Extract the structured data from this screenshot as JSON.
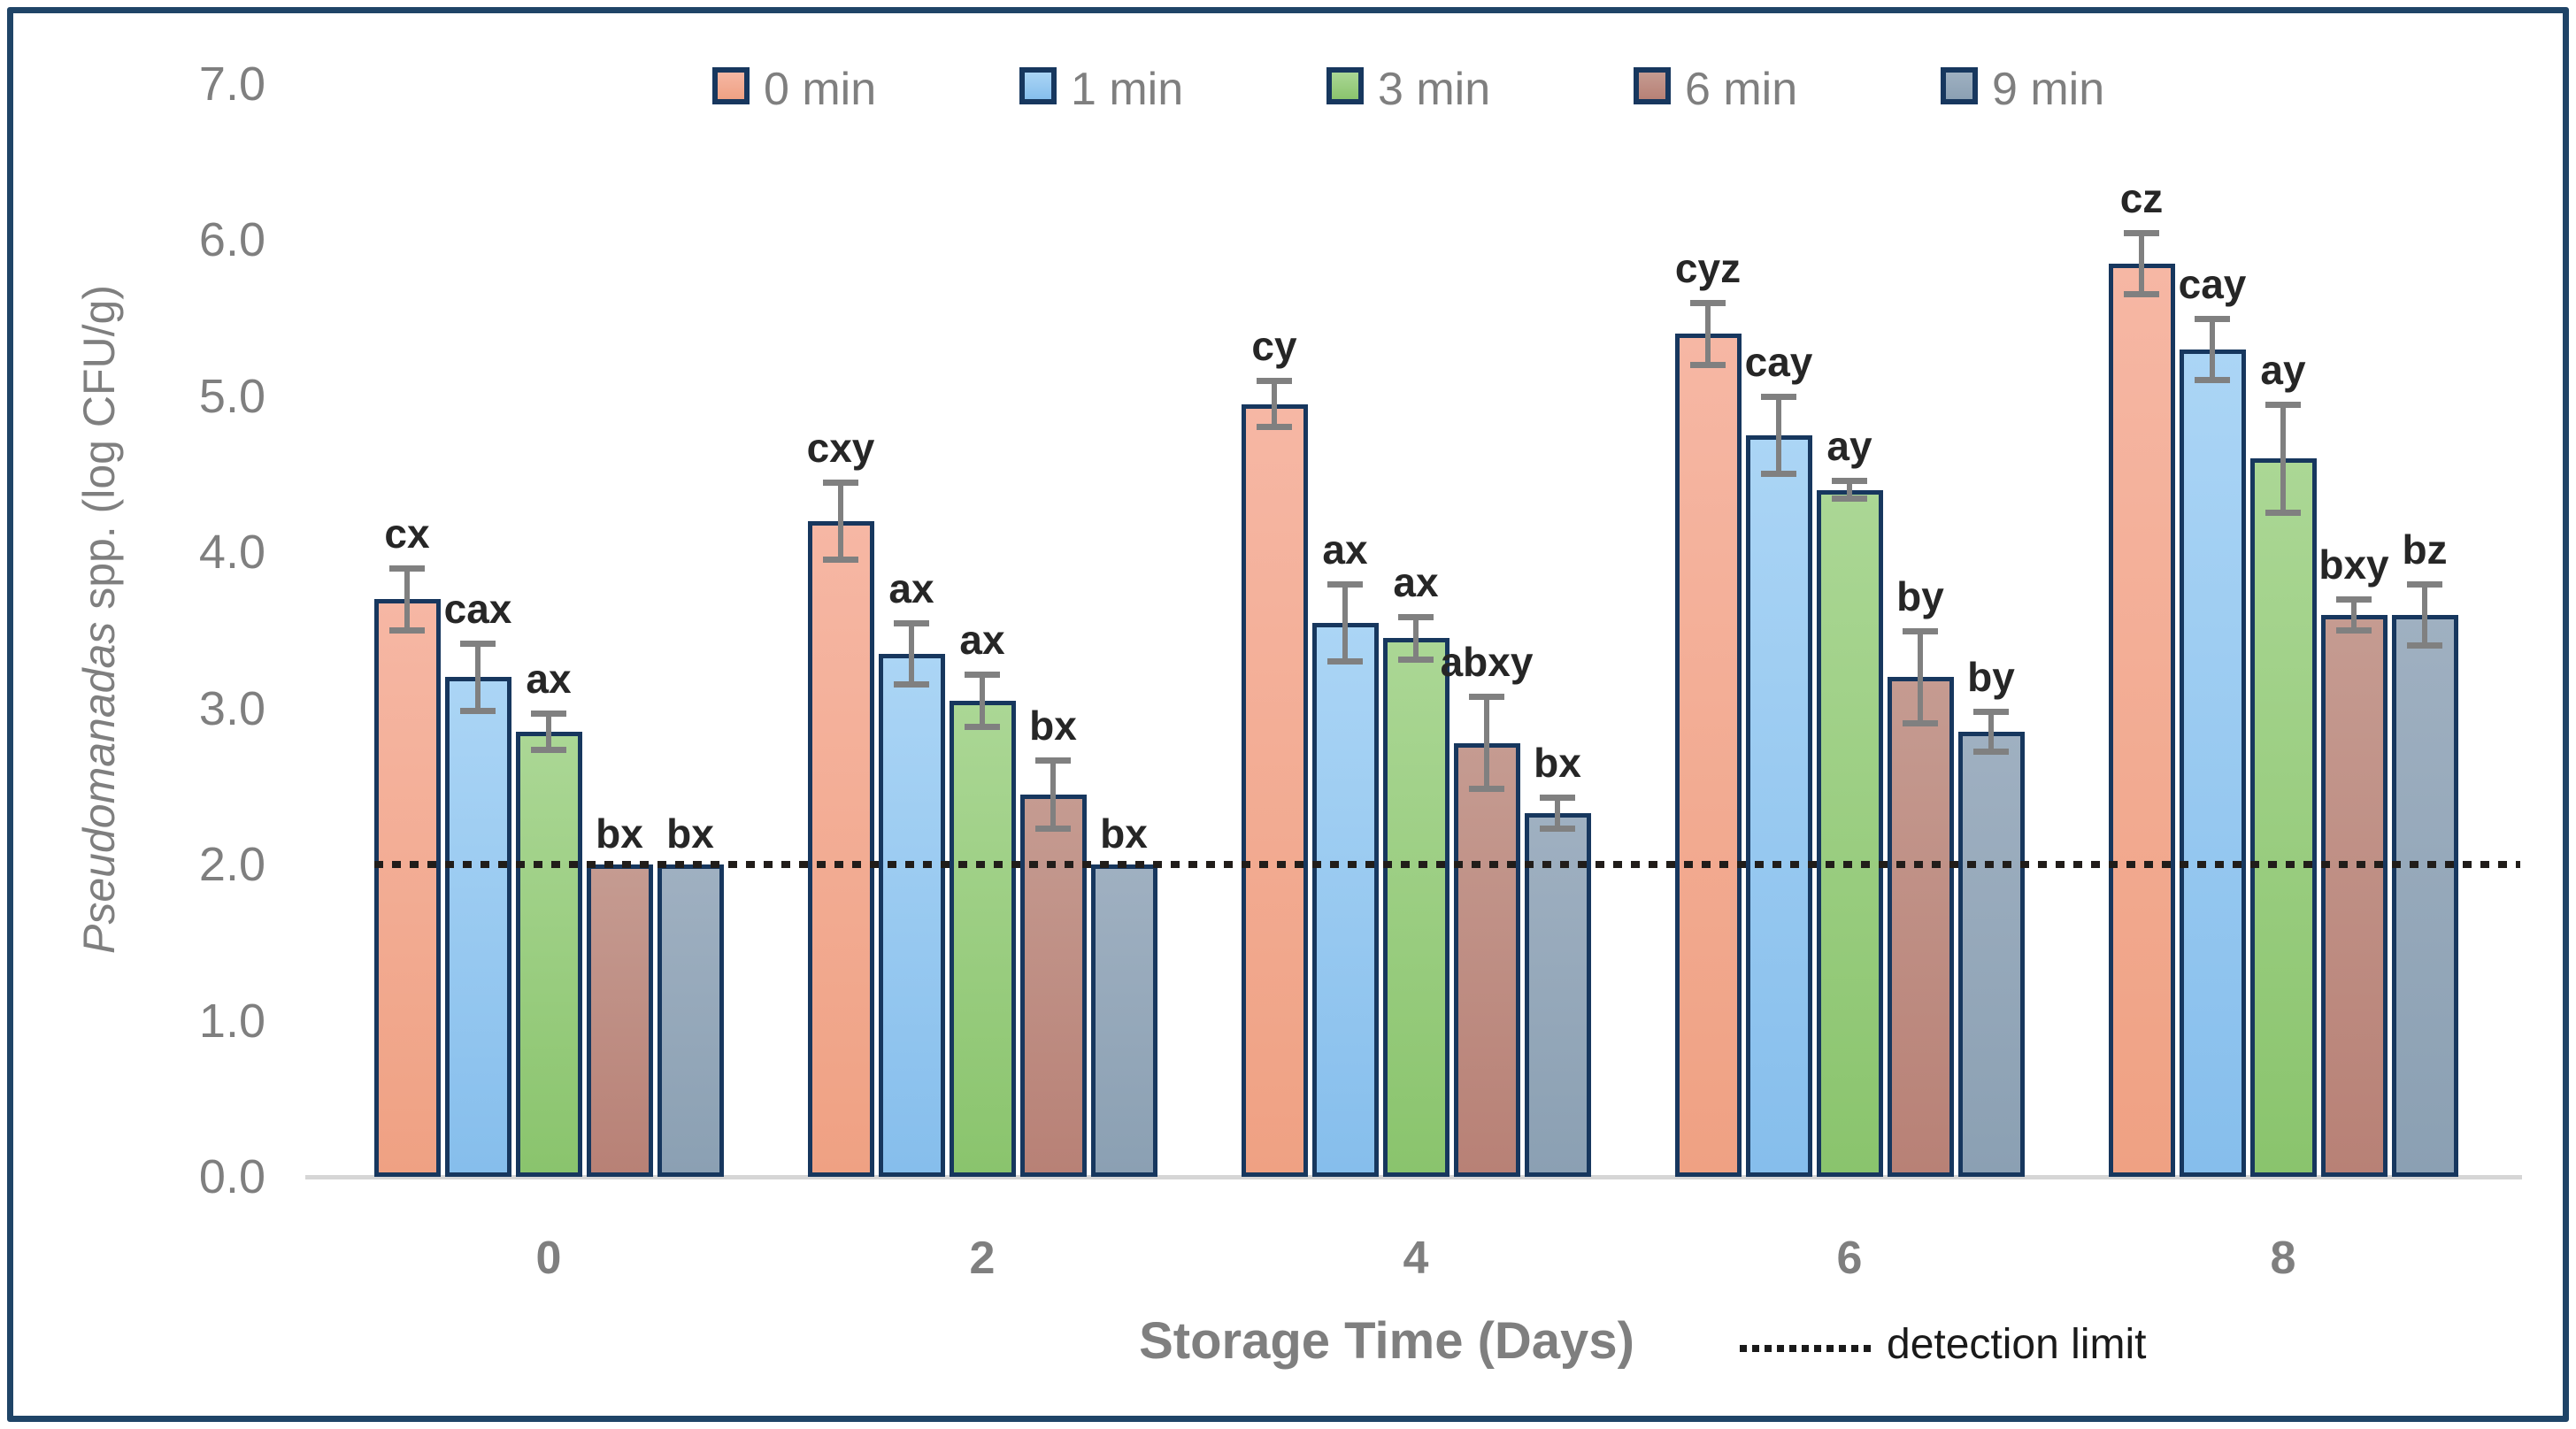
{
  "chart_data": {
    "type": "bar",
    "title": "",
    "xlabel": "Storage Time (Days)",
    "ylabel_italic": "Pseudomanadas",
    "ylabel_rest": " spp. (log CFU/g)",
    "ylim": [
      0,
      7
    ],
    "yticks": [
      "0.0",
      "1.0",
      "2.0",
      "3.0",
      "4.0",
      "5.0",
      "6.0",
      "7.0"
    ],
    "categories": [
      "0",
      "2",
      "4",
      "6",
      "8"
    ],
    "grid": "off",
    "legend_position": "top",
    "series": [
      {
        "name": "0 min",
        "color_top": "#F6B7A4",
        "color_bottom": "#EFA183",
        "values": [
          3.7,
          4.2,
          4.95,
          5.4,
          5.85
        ],
        "errors": [
          0.2,
          0.25,
          0.15,
          0.2,
          0.2
        ],
        "sig_labels": [
          "cx",
          "cxy",
          "cy",
          "cyz",
          "cz"
        ]
      },
      {
        "name": "1 min",
        "color_top": "#ABD5F5",
        "color_bottom": "#86BEEC",
        "values": [
          3.2,
          3.35,
          3.55,
          4.75,
          5.3
        ],
        "errors": [
          0.22,
          0.2,
          0.25,
          0.25,
          0.2
        ],
        "sig_labels": [
          "cax",
          "ax",
          "ax",
          "cay",
          "cay"
        ]
      },
      {
        "name": "3 min",
        "color_top": "#ABD795",
        "color_bottom": "#8AC46D",
        "values": [
          2.85,
          3.05,
          3.45,
          4.4,
          4.6
        ],
        "errors": [
          0.12,
          0.17,
          0.14,
          0.06,
          0.35
        ],
        "sig_labels": [
          "ax",
          "ax",
          "ax",
          "ay",
          "ay"
        ]
      },
      {
        "name": "6 min",
        "color_top": "#C59B91",
        "color_bottom": "#B88176",
        "values": [
          2.0,
          2.45,
          2.78,
          3.2,
          3.6
        ],
        "errors": [
          0,
          0.22,
          0.3,
          0.3,
          0.1
        ],
        "sig_labels": [
          "bx",
          "bx",
          "abxy",
          "by",
          "bxy"
        ]
      },
      {
        "name": "9 min",
        "color_top": "#9FB0C1",
        "color_bottom": "#8BA0B3",
        "values": [
          2.0,
          2.0,
          2.33,
          2.85,
          3.6
        ],
        "errors": [
          0,
          0,
          0.1,
          0.13,
          0.2
        ],
        "sig_labels": [
          "bx",
          "bx",
          "bx",
          "by",
          "bz"
        ]
      }
    ],
    "detection_limit": {
      "value": 2.0,
      "label": "detection limit"
    },
    "colors": {
      "bar_border": "#17375E",
      "frame_border": "#1F4467",
      "error_bar": "#808080",
      "axis_text": "#7F7F7F",
      "sig_text": "#262626",
      "detection_line": "#1A1A1A",
      "baseline": "#D6D6D6"
    }
  }
}
